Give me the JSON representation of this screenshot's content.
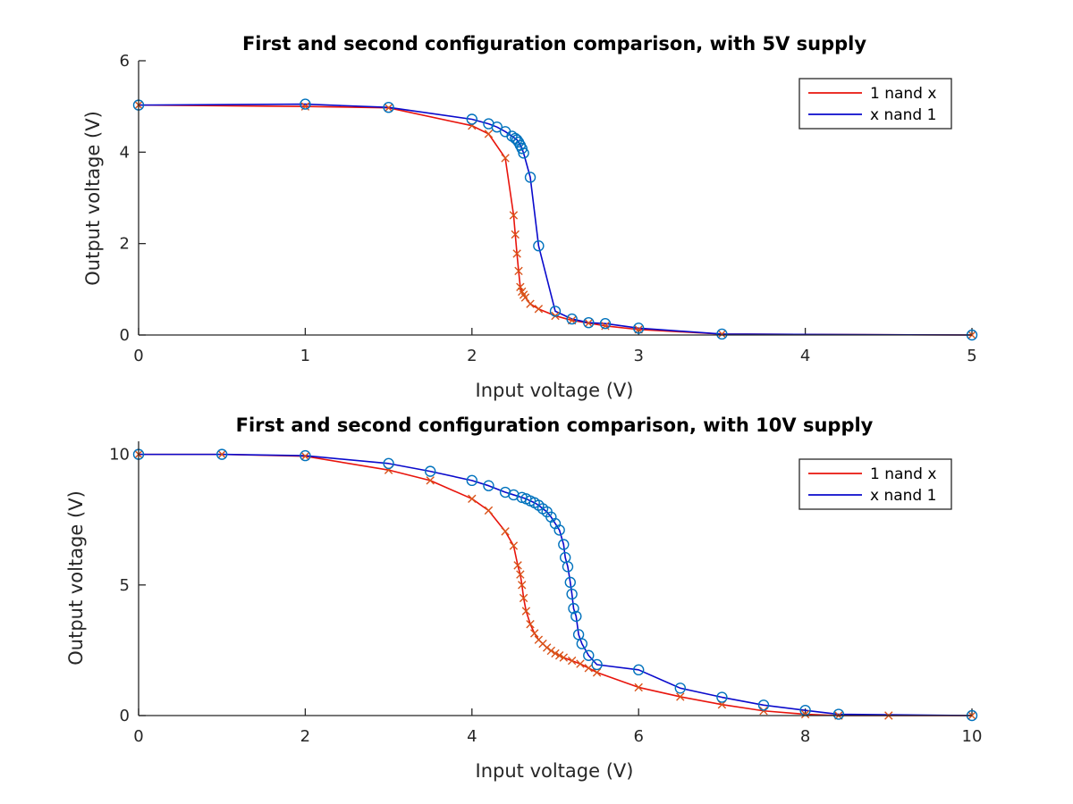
{
  "colors": {
    "series_1_line": "#e8140c",
    "series_1_marker": "#d95319",
    "series_2_line": "#0a0acc",
    "series_2_marker": "#0072bd",
    "axis": "#262626"
  },
  "chart_data": [
    {
      "type": "line",
      "title": "First and second configuration comparison, with 5V supply",
      "xlabel": "Input voltage (V)",
      "ylabel": "Output voltage (V)",
      "xlim": [
        0,
        5
      ],
      "ylim": [
        0,
        6
      ],
      "xticks": [
        "0",
        "1",
        "2",
        "3",
        "4",
        "5"
      ],
      "yticks": [
        "0",
        "2",
        "4",
        "6"
      ],
      "grid": false,
      "legend_position": "top-right",
      "series": [
        {
          "name": "1 nand x",
          "marker": "x",
          "x": [
            0,
            1,
            1.5,
            2,
            2.1,
            2.2,
            2.25,
            2.26,
            2.27,
            2.28,
            2.29,
            2.3,
            2.31,
            2.32,
            2.35,
            2.4,
            2.5,
            2.6,
            2.7,
            2.8,
            3,
            3.5,
            5
          ],
          "y": [
            5.03,
            5.0,
            4.97,
            4.58,
            4.4,
            3.87,
            2.62,
            2.2,
            1.78,
            1.4,
            1.05,
            0.95,
            0.88,
            0.82,
            0.68,
            0.57,
            0.42,
            0.32,
            0.26,
            0.2,
            0.12,
            0.02,
            0.0
          ]
        },
        {
          "name": "x nand 1",
          "marker": "o",
          "x": [
            0,
            1,
            1.5,
            2,
            2.1,
            2.15,
            2.2,
            2.24,
            2.26,
            2.27,
            2.28,
            2.29,
            2.3,
            2.31,
            2.35,
            2.4,
            2.5,
            2.6,
            2.7,
            2.8,
            3,
            3.5,
            5
          ],
          "y": [
            5.03,
            5.05,
            4.98,
            4.72,
            4.62,
            4.55,
            4.45,
            4.35,
            4.3,
            4.27,
            4.22,
            4.15,
            4.08,
            3.98,
            3.45,
            1.95,
            0.52,
            0.35,
            0.27,
            0.25,
            0.15,
            0.02,
            0.0
          ]
        }
      ]
    },
    {
      "type": "line",
      "title": "First and second configuration comparison, with 10V supply",
      "xlabel": "Input voltage (V)",
      "ylabel": "Output voltage (V)",
      "xlim": [
        0,
        10
      ],
      "ylim": [
        0,
        10.5
      ],
      "xticks": [
        "0",
        "2",
        "4",
        "6",
        "8",
        "10"
      ],
      "yticks": [
        "0",
        "5",
        "10"
      ],
      "grid": false,
      "legend_position": "top-right",
      "series": [
        {
          "name": "1 nand x",
          "marker": "x",
          "x": [
            0,
            1,
            2,
            3,
            3.5,
            4,
            4.2,
            4.4,
            4.5,
            4.55,
            4.58,
            4.6,
            4.62,
            4.65,
            4.7,
            4.75,
            4.8,
            4.85,
            4.9,
            4.95,
            5.0,
            5.05,
            5.1,
            5.2,
            5.3,
            5.4,
            5.5,
            6,
            6.5,
            7,
            7.5,
            8,
            8.4,
            9,
            10
          ],
          "y": [
            10.0,
            10.0,
            9.93,
            9.4,
            9.0,
            8.3,
            7.85,
            7.05,
            6.5,
            5.75,
            5.4,
            5.0,
            4.5,
            4.0,
            3.5,
            3.15,
            2.9,
            2.75,
            2.6,
            2.48,
            2.38,
            2.3,
            2.22,
            2.1,
            1.98,
            1.82,
            1.65,
            1.08,
            0.72,
            0.42,
            0.18,
            0.05,
            0.0,
            0.0,
            0.0
          ]
        },
        {
          "name": "x nand 1",
          "marker": "o",
          "x": [
            0,
            1,
            2,
            3,
            3.5,
            4,
            4.2,
            4.4,
            4.5,
            4.6,
            4.65,
            4.7,
            4.75,
            4.8,
            4.85,
            4.9,
            4.95,
            5.0,
            5.05,
            5.1,
            5.12,
            5.15,
            5.18,
            5.2,
            5.22,
            5.25,
            5.28,
            5.32,
            5.4,
            5.5,
            6,
            6.5,
            7,
            7.5,
            8,
            8.4,
            10
          ],
          "y": [
            10.0,
            10.0,
            9.95,
            9.65,
            9.35,
            9.0,
            8.8,
            8.55,
            8.45,
            8.35,
            8.3,
            8.22,
            8.15,
            8.05,
            7.92,
            7.8,
            7.6,
            7.35,
            7.1,
            6.55,
            6.05,
            5.7,
            5.1,
            4.65,
            4.1,
            3.8,
            3.1,
            2.75,
            2.3,
            1.95,
            1.75,
            1.05,
            0.7,
            0.4,
            0.2,
            0.05,
            0.0
          ]
        }
      ]
    }
  ]
}
